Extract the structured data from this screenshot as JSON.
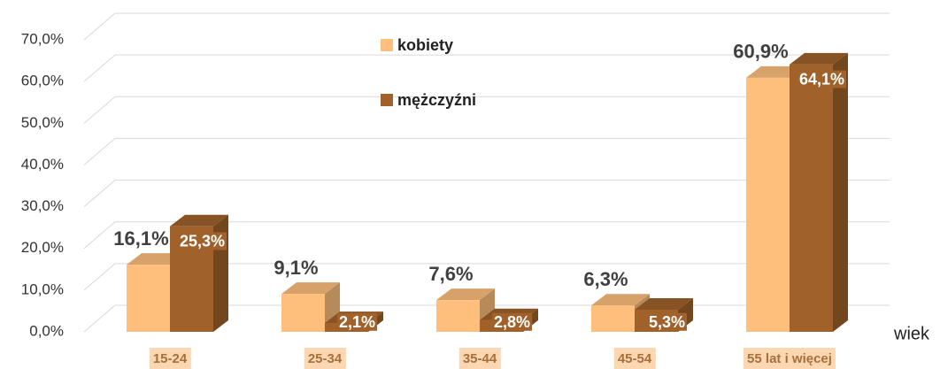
{
  "chart_data": {
    "type": "bar3d",
    "x_label": "wiek",
    "categories": [
      "15-24",
      "25-34",
      "35-44",
      "45-54",
      "55 lat i więcej"
    ],
    "series": [
      {
        "name": "kobiety",
        "color": "#fdbf7b",
        "values": [
          16.1,
          9.1,
          7.6,
          6.3,
          60.9
        ],
        "value_labels": [
          "16,1%",
          "9,1%",
          "7,6%",
          "6,3%",
          "60,9%"
        ]
      },
      {
        "name": "mężczyźni",
        "color": "#a0622a",
        "values": [
          25.3,
          2.1,
          2.8,
          5.3,
          64.1
        ],
        "value_labels": [
          "25,3%",
          "2,1%",
          "2,8%",
          "5,3%",
          "64,1%"
        ]
      }
    ],
    "ylim": [
      0,
      70
    ],
    "yticks": [
      {
        "value": 0,
        "label": "0,0%"
      },
      {
        "value": 10,
        "label": "10,0%"
      },
      {
        "value": 20,
        "label": "20,0%"
      },
      {
        "value": 30,
        "label": "30,0%"
      },
      {
        "value": 40,
        "label": "40,0%"
      },
      {
        "value": 50,
        "label": "50,0%"
      },
      {
        "value": 60,
        "label": "60,0%"
      },
      {
        "value": 70,
        "label": "70,0%"
      }
    ],
    "grid": true
  }
}
